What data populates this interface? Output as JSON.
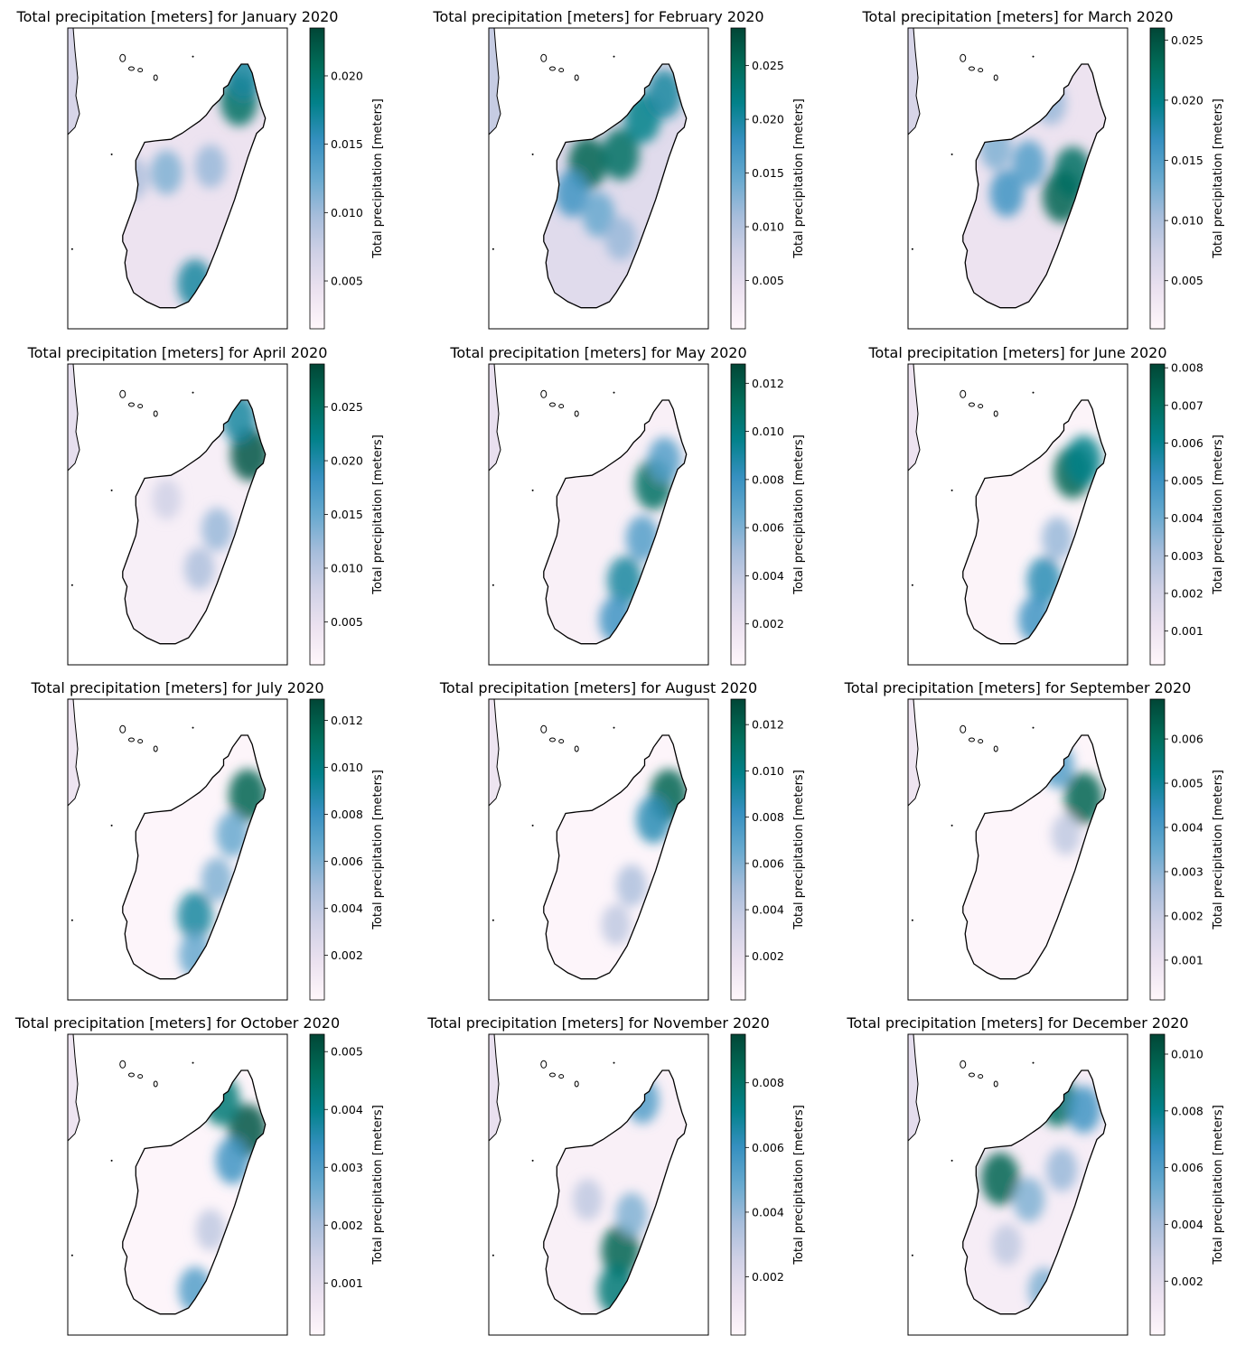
{
  "figure": {
    "colormap": [
      "#fff7fb",
      "#ece2f0",
      "#d0d1e6",
      "#a6bddb",
      "#67a9cf",
      "#3690c0",
      "#02818a",
      "#016c59",
      "#014636"
    ],
    "coastline_color": "#000000",
    "axes_frame_color": "#000000",
    "colorbar_label": "Total precipitation [meters]"
  },
  "panels": [
    {
      "title": "Total precipitation [meters] for January 2020",
      "vmin": 0.0015,
      "vmax": 0.0235,
      "ticks": [
        "0.005",
        "0.010",
        "0.015",
        "0.020"
      ],
      "tick_values": [
        0.005,
        0.01,
        0.015,
        0.02
      ],
      "hotspots": [
        [
          0.78,
          0.24,
          0.85
        ],
        [
          0.8,
          0.16,
          0.7
        ],
        [
          0.45,
          0.48,
          0.45
        ],
        [
          0.65,
          0.46,
          0.4
        ],
        [
          0.58,
          0.85,
          0.7
        ],
        [
          0.3,
          0.5,
          0.35
        ]
      ],
      "base": 0.12
    },
    {
      "title": "Total precipitation [meters] for February 2020",
      "vmin": 0.0005,
      "vmax": 0.0285,
      "ticks": [
        "0.005",
        "0.010",
        "0.015",
        "0.020",
        "0.025"
      ],
      "tick_values": [
        0.005,
        0.01,
        0.015,
        0.02,
        0.025
      ],
      "hotspots": [
        [
          0.45,
          0.45,
          0.9
        ],
        [
          0.6,
          0.42,
          0.85
        ],
        [
          0.7,
          0.3,
          0.75
        ],
        [
          0.8,
          0.22,
          0.7
        ],
        [
          0.38,
          0.55,
          0.6
        ],
        [
          0.5,
          0.62,
          0.5
        ],
        [
          0.6,
          0.7,
          0.4
        ]
      ],
      "base": 0.18
    },
    {
      "title": "Total precipitation [meters] for March 2020",
      "vmin": 0.001,
      "vmax": 0.026,
      "ticks": [
        "0.005",
        "0.010",
        "0.015",
        "0.020",
        "0.025"
      ],
      "tick_values": [
        0.005,
        0.01,
        0.015,
        0.02,
        0.025
      ],
      "hotspots": [
        [
          0.7,
          0.56,
          0.9
        ],
        [
          0.75,
          0.48,
          0.85
        ],
        [
          0.45,
          0.55,
          0.6
        ],
        [
          0.55,
          0.45,
          0.55
        ],
        [
          0.4,
          0.4,
          0.45
        ],
        [
          0.65,
          0.25,
          0.4
        ]
      ],
      "base": 0.12
    },
    {
      "title": "Total precipitation [meters] for April 2020",
      "vmin": 0.001,
      "vmax": 0.029,
      "ticks": [
        "0.005",
        "0.010",
        "0.015",
        "0.020",
        "0.025"
      ],
      "tick_values": [
        0.005,
        0.01,
        0.015,
        0.02,
        0.025
      ],
      "hotspots": [
        [
          0.83,
          0.3,
          0.95
        ],
        [
          0.78,
          0.18,
          0.7
        ],
        [
          0.68,
          0.55,
          0.4
        ],
        [
          0.6,
          0.68,
          0.35
        ],
        [
          0.45,
          0.45,
          0.25
        ]
      ],
      "base": 0.05
    },
    {
      "title": "Total precipitation [meters] for May 2020",
      "vmin": 0.0003,
      "vmax": 0.0128,
      "ticks": [
        "0.002",
        "0.004",
        "0.006",
        "0.008",
        "0.010",
        "0.012"
      ],
      "tick_values": [
        0.002,
        0.004,
        0.006,
        0.008,
        0.01,
        0.012
      ],
      "hotspots": [
        [
          0.75,
          0.4,
          0.85
        ],
        [
          0.62,
          0.72,
          0.7
        ],
        [
          0.7,
          0.58,
          0.55
        ],
        [
          0.58,
          0.85,
          0.6
        ],
        [
          0.8,
          0.32,
          0.55
        ]
      ],
      "base": 0.04
    },
    {
      "title": "Total precipitation [meters] for June 2020",
      "vmin": 0.0001,
      "vmax": 0.0081,
      "ticks": [
        "0.001",
        "0.002",
        "0.003",
        "0.004",
        "0.005",
        "0.006",
        "0.007",
        "0.008"
      ],
      "tick_values": [
        0.001,
        0.002,
        0.003,
        0.004,
        0.005,
        0.006,
        0.007,
        0.008
      ],
      "hotspots": [
        [
          0.75,
          0.36,
          0.9
        ],
        [
          0.62,
          0.72,
          0.65
        ],
        [
          0.8,
          0.32,
          0.75
        ],
        [
          0.58,
          0.85,
          0.6
        ],
        [
          0.68,
          0.58,
          0.4
        ]
      ],
      "base": 0.02
    },
    {
      "title": "Total precipitation [meters] for July 2020",
      "vmin": 0.0001,
      "vmax": 0.0129,
      "ticks": [
        "0.002",
        "0.004",
        "0.006",
        "0.008",
        "0.010",
        "0.012"
      ],
      "tick_values": [
        0.002,
        0.004,
        0.006,
        0.008,
        0.01,
        0.012
      ],
      "hotspots": [
        [
          0.82,
          0.32,
          0.9
        ],
        [
          0.58,
          0.72,
          0.7
        ],
        [
          0.75,
          0.45,
          0.5
        ],
        [
          0.68,
          0.6,
          0.45
        ],
        [
          0.58,
          0.85,
          0.5
        ]
      ],
      "base": 0.01
    },
    {
      "title": "Total precipitation [meters] for August 2020",
      "vmin": 0.0001,
      "vmax": 0.0131,
      "ticks": [
        "0.002",
        "0.004",
        "0.006",
        "0.008",
        "0.010",
        "0.012"
      ],
      "tick_values": [
        0.002,
        0.004,
        0.006,
        0.008,
        0.01,
        0.012
      ],
      "hotspots": [
        [
          0.82,
          0.32,
          0.9
        ],
        [
          0.75,
          0.4,
          0.65
        ],
        [
          0.65,
          0.62,
          0.35
        ],
        [
          0.58,
          0.75,
          0.3
        ]
      ],
      "base": 0.01
    },
    {
      "title": "Total precipitation [meters] for September 2020",
      "vmin": 0.0001,
      "vmax": 0.0069,
      "ticks": [
        "0.001",
        "0.002",
        "0.003",
        "0.004",
        "0.005",
        "0.006"
      ],
      "tick_values": [
        0.001,
        0.002,
        0.003,
        0.004,
        0.005,
        0.006
      ],
      "hotspots": [
        [
          0.8,
          0.33,
          0.9
        ],
        [
          0.68,
          0.22,
          0.55
        ],
        [
          0.72,
          0.45,
          0.3
        ]
      ],
      "base": 0.01
    },
    {
      "title": "Total precipitation [meters] for October 2020",
      "vmin": 0.0001,
      "vmax": 0.0053,
      "ticks": [
        "0.001",
        "0.002",
        "0.003",
        "0.004",
        "0.005"
      ],
      "tick_values": [
        0.001,
        0.002,
        0.003,
        0.004,
        0.005
      ],
      "hotspots": [
        [
          0.82,
          0.32,
          0.95
        ],
        [
          0.7,
          0.22,
          0.8
        ],
        [
          0.75,
          0.42,
          0.6
        ],
        [
          0.58,
          0.85,
          0.55
        ],
        [
          0.65,
          0.65,
          0.3
        ]
      ],
      "base": 0.01
    },
    {
      "title": "Total precipitation [meters] for November 2020",
      "vmin": 0.0002,
      "vmax": 0.0095,
      "ticks": [
        "0.002",
        "0.004",
        "0.006",
        "0.008"
      ],
      "tick_values": [
        0.002,
        0.004,
        0.006,
        0.008
      ],
      "hotspots": [
        [
          0.6,
          0.72,
          0.9
        ],
        [
          0.58,
          0.85,
          0.8
        ],
        [
          0.7,
          0.22,
          0.55
        ],
        [
          0.45,
          0.55,
          0.3
        ],
        [
          0.65,
          0.6,
          0.45
        ]
      ],
      "base": 0.04
    },
    {
      "title": "Total precipitation [meters] for December 2020",
      "vmin": 0.0001,
      "vmax": 0.0107,
      "ticks": [
        "0.002",
        "0.004",
        "0.006",
        "0.008",
        "0.010"
      ],
      "tick_values": [
        0.002,
        0.004,
        0.006,
        0.008,
        0.01
      ],
      "hotspots": [
        [
          0.42,
          0.48,
          0.9
        ],
        [
          0.68,
          0.22,
          0.85
        ],
        [
          0.8,
          0.25,
          0.6
        ],
        [
          0.55,
          0.55,
          0.45
        ],
        [
          0.7,
          0.45,
          0.4
        ],
        [
          0.45,
          0.7,
          0.3
        ],
        [
          0.62,
          0.85,
          0.45
        ]
      ],
      "base": 0.06
    }
  ]
}
